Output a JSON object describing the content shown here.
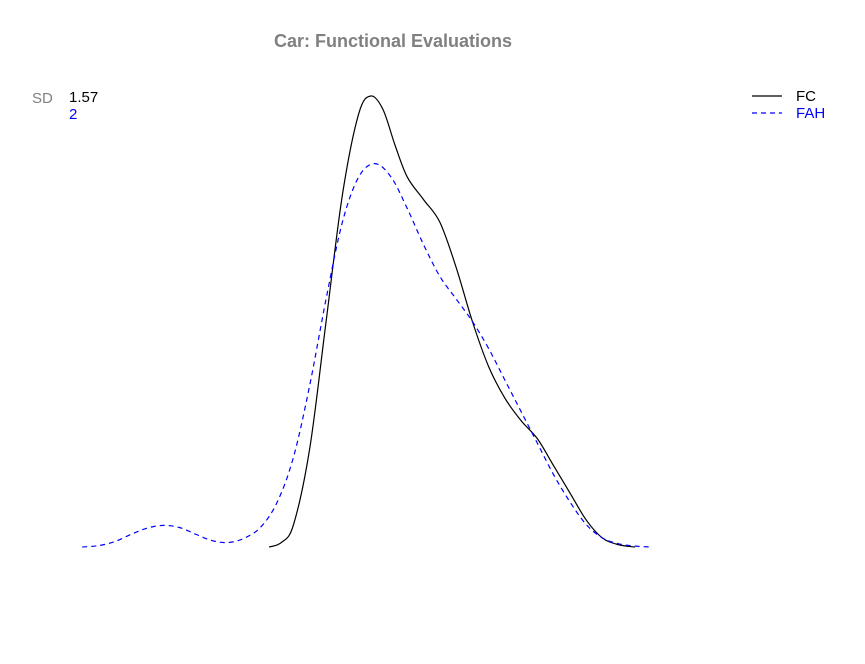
{
  "chart_data": {
    "type": "line",
    "title": "Car: Functional Evaluations",
    "xlabel": "",
    "ylabel": "",
    "grid": false,
    "axes_visible": false,
    "title_color": "#808080",
    "xlim": [
      -3.6,
      5.0
    ],
    "ylim": [
      0,
      1.0
    ],
    "sd_label": "SD",
    "sd_label_color": "#808080",
    "legend": {
      "placement": "top-right"
    },
    "series": [
      {
        "name": "FC",
        "sd": "1.57",
        "color": "#000000",
        "dash": "solid",
        "x": [
          -1.1,
          -0.95,
          -0.8,
          -0.6,
          -0.4,
          -0.2,
          0.0,
          0.15,
          0.3,
          0.45,
          0.6,
          0.8,
          1.0,
          1.2,
          1.4,
          1.6,
          1.8,
          2.0,
          2.2,
          2.4,
          2.6,
          2.8,
          3.0,
          3.2,
          3.4,
          3.6,
          3.8,
          4.0
        ],
        "y": [
          0.0,
          0.01,
          0.05,
          0.22,
          0.5,
          0.78,
          0.96,
          1.0,
          0.97,
          0.89,
          0.82,
          0.77,
          0.72,
          0.62,
          0.5,
          0.4,
          0.33,
          0.28,
          0.24,
          0.18,
          0.12,
          0.06,
          0.02,
          0.005,
          0.0,
          null,
          null,
          null
        ]
      },
      {
        "name": "FAH",
        "sd": "2",
        "color": "#0000ff",
        "dash": "dashed",
        "x": [
          -3.4,
          -3.2,
          -3.0,
          -2.8,
          -2.6,
          -2.4,
          -2.2,
          -2.0,
          -1.8,
          -1.6,
          -1.4,
          -1.2,
          -1.0,
          -0.8,
          -0.6,
          -0.4,
          -0.2,
          0.0,
          0.2,
          0.4,
          0.6,
          0.8,
          1.0,
          1.2,
          1.4,
          1.6,
          1.8,
          2.0,
          2.2,
          2.4,
          2.6,
          2.8,
          3.0,
          3.2,
          3.4,
          3.6
        ],
        "y": [
          0.0,
          0.003,
          0.012,
          0.028,
          0.042,
          0.048,
          0.043,
          0.028,
          0.014,
          0.01,
          0.02,
          0.045,
          0.1,
          0.2,
          0.36,
          0.55,
          0.72,
          0.82,
          0.85,
          0.82,
          0.75,
          0.67,
          0.6,
          0.55,
          0.5,
          0.44,
          0.37,
          0.3,
          0.23,
          0.16,
          0.1,
          0.05,
          0.02,
          0.007,
          0.002,
          0.0
        ]
      }
    ]
  }
}
